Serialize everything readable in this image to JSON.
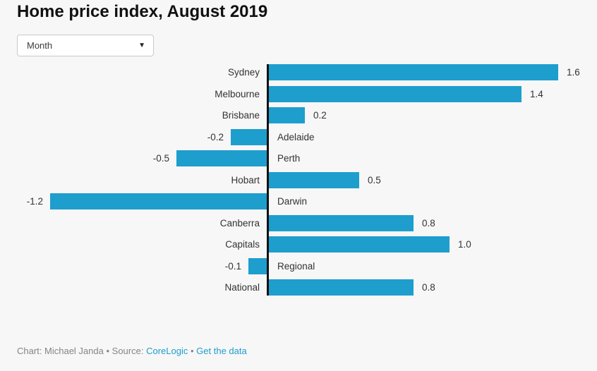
{
  "title": "Home price index, August 2019",
  "controls": {
    "period_dropdown": {
      "value": "Month",
      "icon": "▼"
    }
  },
  "chart_data": {
    "type": "bar",
    "orientation": "horizontal",
    "title": "Home price index, August 2019",
    "categories": [
      "Sydney",
      "Melbourne",
      "Brisbane",
      "Adelaide",
      "Perth",
      "Hobart",
      "Darwin",
      "Canberra",
      "Capitals",
      "Regional",
      "National"
    ],
    "values": [
      1.6,
      1.4,
      0.2,
      -0.2,
      -0.5,
      0.5,
      -1.2,
      0.8,
      1.0,
      -0.1,
      0.8
    ],
    "value_labels": [
      "1.6",
      "1.4",
      "0.2",
      "-0.2",
      "-0.5",
      "0.5",
      "-1.2",
      "0.8",
      "1.0",
      "-0.1",
      "0.8"
    ],
    "xlim": [
      -1.2,
      1.6
    ],
    "grid": false,
    "legend": "none",
    "bar_color": "#1e9ecd",
    "axis_color": "#111111",
    "value_label_position": "outside-bar-end",
    "category_label_position": "opposite-side-of-zero-axis"
  },
  "footer": {
    "byline": "Chart: Michael Janda",
    "separator": "•",
    "source_prefix": "Source:",
    "source_link": "CoreLogic",
    "data_link": "Get the data"
  },
  "colors": {
    "accent": "#1e9ecd",
    "link": "#1d9ecd",
    "background": "#f7f7f7",
    "text": "#333333",
    "text_muted": "#858585",
    "axis": "#111111"
  }
}
